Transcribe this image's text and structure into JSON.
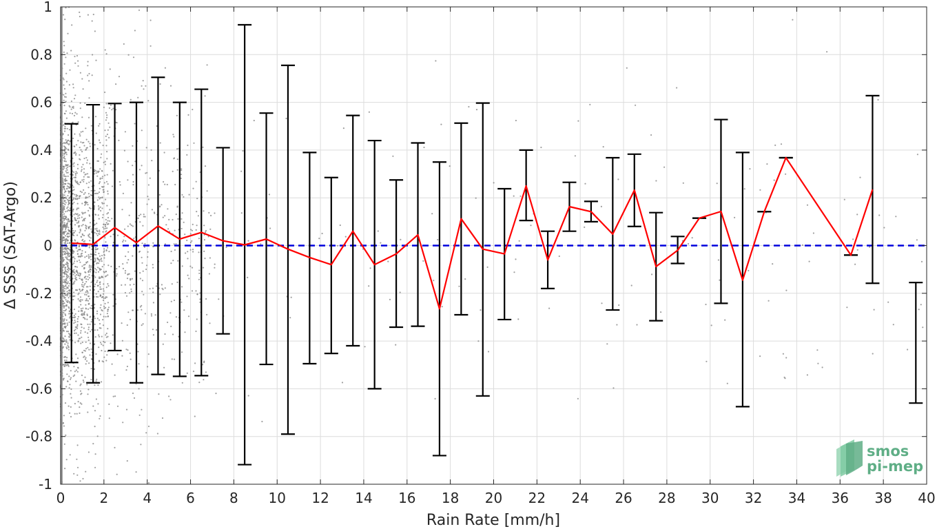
{
  "chart_data": {
    "type": "line",
    "xlabel": "Rain Rate [mm/h]",
    "ylabel": "Δ SSS (SAT-Argo)",
    "xlim": [
      0,
      40
    ],
    "ylim": [
      -1,
      1
    ],
    "xticks": [
      0,
      2,
      4,
      6,
      8,
      10,
      12,
      14,
      16,
      18,
      20,
      22,
      24,
      26,
      28,
      30,
      32,
      34,
      36,
      38,
      40
    ],
    "yticks": [
      -1,
      -0.8,
      -0.6,
      -0.4,
      -0.2,
      0,
      0.2,
      0.4,
      0.6,
      0.8,
      1
    ],
    "ytick_labels": [
      "-1",
      "-0.8",
      "-0.6",
      "-0.4",
      "-0.2",
      "0",
      "0.2",
      "0.4",
      "0.6",
      "0.8",
      "1"
    ],
    "grid": true,
    "colors": {
      "mean_line": "#ff0000",
      "zero_line": "#0000dd",
      "error_bars": "#000000",
      "scatter": "#808080"
    },
    "zero_reference": {
      "y": 0,
      "style": "dashed"
    },
    "mean": {
      "x": [
        0.5,
        1.5,
        2.5,
        3.5,
        4.5,
        5.5,
        6.5,
        7.5,
        8.5,
        9.5,
        10.5,
        11.5,
        12.5,
        13.5,
        14.5,
        15.5,
        16.5,
        17.5,
        18.5,
        19.5,
        20.5,
        21.5,
        22.5,
        23.5,
        24.5,
        25.5,
        26.5,
        27.5,
        28.5,
        29.5,
        30.5,
        31.5,
        32.5,
        33.5,
        36.5,
        37.5,
        39.5
      ],
      "y": [
        0.01,
        0.005,
        0.075,
        0.012,
        0.082,
        0.027,
        0.055,
        0.02,
        0.003,
        0.027,
        -0.015,
        -0.05,
        -0.08,
        0.06,
        -0.08,
        -0.035,
        0.045,
        -0.265,
        0.112,
        -0.015,
        -0.035,
        0.25,
        -0.06,
        0.163,
        0.142,
        0.048,
        0.232,
        -0.088,
        -0.02,
        0.115,
        0.143,
        -0.145,
        0.142,
        0.368,
        -0.04,
        0.235,
        null
      ]
    },
    "error_bars": {
      "upper": [
        0.51,
        0.59,
        0.595,
        0.6,
        0.705,
        0.6,
        0.655,
        0.41,
        0.925,
        0.555,
        0.755,
        0.39,
        0.285,
        0.545,
        0.44,
        0.275,
        0.43,
        0.35,
        0.513,
        0.597,
        0.238,
        0.4,
        0.06,
        0.265,
        0.185,
        0.368,
        0.383,
        0.138,
        0.038,
        0.115,
        0.528,
        0.39,
        0.142,
        0.368,
        -0.04,
        0.628,
        -0.155
      ],
      "lower": [
        -0.49,
        -0.575,
        -0.44,
        -0.575,
        -0.54,
        -0.548,
        -0.545,
        -0.37,
        -0.918,
        -0.498,
        -0.79,
        -0.495,
        -0.452,
        -0.42,
        -0.6,
        -0.342,
        -0.338,
        -0.88,
        -0.29,
        -0.63,
        -0.31,
        0.105,
        -0.18,
        0.06,
        0.1,
        -0.27,
        0.08,
        -0.315,
        -0.075,
        0.115,
        -0.242,
        -0.675,
        0.142,
        0.368,
        -0.04,
        -0.158,
        -0.66
      ]
    },
    "scatter": {
      "label": "individual matchups",
      "density": "dense near x=0, sparse beyond 6 mm/h"
    }
  },
  "logo": {
    "line1": "smos",
    "line2": "pi-mep"
  }
}
